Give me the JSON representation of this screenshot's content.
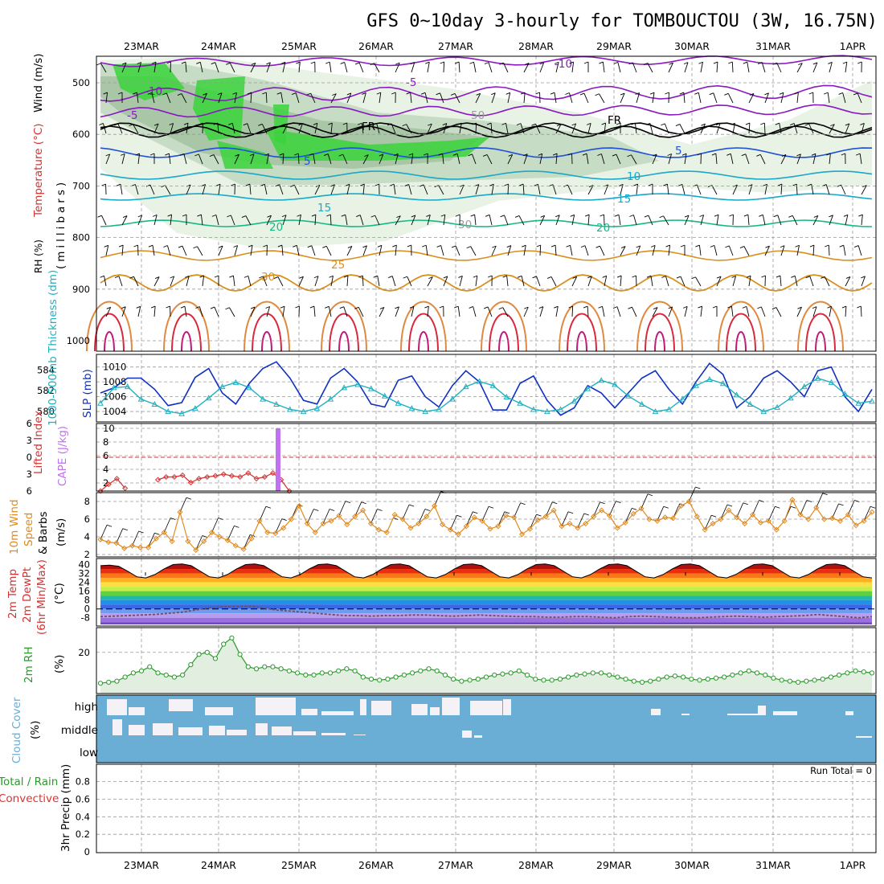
{
  "title": "GFS 0~10day 3-hourly for TOMBOUCTOU (3W, 16.75N)",
  "dates": [
    "23MAR",
    "24MAR",
    "25MAR",
    "26MAR",
    "27MAR",
    "28MAR",
    "29MAR",
    "30MAR",
    "31MAR",
    "1APR"
  ],
  "run_total": "Run Total = 0",
  "colors": {
    "rh_green": "#3ad43a",
    "temp_purple": "#8a1ac0",
    "temp_blue": "#1e50d8",
    "temp_cyan": "#18a8c8",
    "temp_green": "#18b888",
    "temp_orange": "#d8901e",
    "temp_red": "#d8283c",
    "slp": "#1030c0",
    "thickness": "#20b0c0",
    "lifted": "#d83030",
    "cape": "#c070f0",
    "wind10": "#e08a20",
    "rh2m": "#2a9a2a",
    "cloud": "#6aaed6",
    "precip_total": "#2a9a2a",
    "precip_conv": "#e03030"
  },
  "chart_data": [
    {
      "type": "heatmap",
      "panel": "upper_air",
      "ylabel": "(millibars)",
      "ylabel_parts": [
        "RH (%)",
        "Temperature (°C)",
        "Wind (m/s)"
      ],
      "yticks": [
        500,
        600,
        700,
        800,
        900,
        1000
      ],
      "ylim": [
        450,
        1000
      ],
      "contour_labels": [
        "-10",
        "-10",
        "-5",
        "-5",
        "FR",
        "FR",
        "5",
        "5",
        "10",
        "15",
        "15",
        "20",
        "20",
        "25",
        "30",
        "50",
        "30"
      ]
    },
    {
      "type": "line",
      "panel": "slp_thickness",
      "ylabel_left": "1000-500mb Thickness (dm)",
      "ylabel_right": "SLP (mb)",
      "yticks_left": [
        580,
        582,
        584
      ],
      "yticks_right": [
        1004,
        1006,
        1008,
        1010
      ],
      "ylim_left": [
        579,
        585.5
      ],
      "ylim_right": [
        1002.6,
        1011.7
      ],
      "series": [
        {
          "name": "SLP (mb)",
          "axis": "right",
          "values": [
            1006.5,
            1007.2,
            1008.5,
            1008.5,
            1007.0,
            1004.8,
            1005.2,
            1008.6,
            1009.8,
            1006.5,
            1005.0,
            1007.8,
            1009.8,
            1010.7,
            1008.5,
            1005.5,
            1005.0,
            1008.5,
            1009.8,
            1008.0,
            1005.0,
            1004.6,
            1008.2,
            1008.8,
            1006.0,
            1004.6,
            1007.5,
            1009.5,
            1008.0,
            1004.2,
            1004.2,
            1007.8,
            1008.8,
            1005.5,
            1003.5,
            1004.5,
            1007.5,
            1006.5,
            1004.5,
            1006.5,
            1008.5,
            1009.5,
            1007.0,
            1005.0,
            1008.0,
            1010.5,
            1009.0,
            1004.5,
            1006.0,
            1008.5,
            1009.5,
            1008.0,
            1006.0,
            1009.5,
            1010.0,
            1006.0,
            1004.0,
            1007.0
          ]
        },
        {
          "name": "1000-500mb Thickness (dm)",
          "axis": "left",
          "values": [
            580.8,
            582.3,
            582.4,
            581.2,
            580.7,
            580.0,
            579.8,
            580.3,
            581.3,
            582.4,
            582.8,
            582.3,
            581.2,
            580.7,
            580.2,
            580.0,
            580.3,
            581.2,
            582.3,
            582.6,
            582.2,
            581.5,
            580.8,
            580.3,
            580.0,
            580.2,
            581.2,
            582.4,
            582.9,
            582.5,
            581.4,
            580.8,
            580.2,
            580.0,
            580.2,
            581.0,
            582.2,
            583.0,
            582.6,
            581.5,
            580.7,
            580.0,
            580.2,
            581.2,
            582.5,
            583.1,
            582.7,
            581.6,
            580.7,
            580.0,
            580.4,
            581.3,
            582.4,
            583.2,
            582.8,
            581.7,
            580.8,
            581.0
          ]
        }
      ]
    },
    {
      "type": "line",
      "panel": "lifted_cape",
      "ylabel_left": "Lifted Index",
      "ylabel_right": "CAPE (J/kg)",
      "yticks_left": [
        -6,
        -3,
        0,
        3,
        6
      ],
      "yticks_right": [
        2,
        4,
        6,
        8,
        10
      ],
      "ylim_left": [
        6,
        -6
      ],
      "series": [
        {
          "name": "Lifted Index",
          "values": [
            6.0,
            4.8,
            3.8,
            5.5,
            null,
            null,
            null,
            4.0,
            3.5,
            3.5,
            3.2,
            4.5,
            3.8,
            3.5,
            3.3,
            3.0,
            3.3,
            3.5,
            2.8,
            3.8,
            3.5,
            2.8,
            4.0,
            6.0,
            null
          ]
        },
        {
          "name": "CAPE (J/kg)",
          "bars": [
            {
              "x": "24MAR 18",
              "value": 10.0
            }
          ]
        }
      ]
    },
    {
      "type": "line",
      "panel": "wind10m",
      "ylabel": "10m Wind Speed & Barbs (m/s)",
      "yticks": [
        2,
        4,
        6,
        8
      ],
      "ylim": [
        2,
        9
      ],
      "series": [
        {
          "name": "10m Wind Speed",
          "values": [
            3.7,
            3.4,
            3.3,
            2.7,
            3.0,
            2.8,
            2.8,
            3.8,
            4.5,
            3.5,
            6.8,
            3.5,
            2.5,
            3.5,
            4.5,
            4.0,
            3.6,
            3.0,
            2.6,
            3.8,
            5.8,
            4.5,
            4.4,
            5.0,
            6.0,
            7.5,
            5.5,
            4.5,
            5.5,
            5.8,
            6.4,
            5.4,
            6.3,
            7.0,
            5.5,
            4.8,
            4.5,
            6.5,
            6.0,
            5.0,
            5.5,
            6.3,
            7.5,
            5.4,
            4.8,
            4.3,
            5.2,
            6.2,
            5.8,
            4.9,
            5.2,
            6.4,
            6.2,
            4.3,
            4.9,
            5.9,
            6.3,
            7.0,
            5.2,
            5.5,
            5.0,
            5.5,
            6.3,
            7.0,
            6.4,
            5.0,
            5.6,
            6.6,
            7.2,
            6.0,
            5.8,
            6.2,
            6.1,
            7.5,
            8.0,
            6.3,
            4.8,
            5.5,
            6.0,
            7.0,
            6.2,
            5.5,
            6.5,
            5.6,
            5.8,
            4.8,
            5.8,
            8.2,
            6.5,
            6.0,
            7.3,
            6.0,
            6.1,
            5.8,
            6.5,
            5.3,
            5.8,
            6.8
          ]
        }
      ]
    },
    {
      "type": "area",
      "panel": "temp2m",
      "ylabel": "2m Temp 2m DewPt (6hr Min/Max) (°C)",
      "yticks": [
        -8,
        0,
        8,
        16,
        24,
        32,
        40
      ],
      "ylim": [
        -14,
        44
      ],
      "series": [
        {
          "name": "2m Temp",
          "values": [
            39,
            39.5,
            38.5,
            34,
            29,
            28,
            31,
            36,
            40,
            40.5,
            39,
            34,
            29,
            28,
            31,
            36,
            40,
            40.5,
            39,
            34,
            29,
            28,
            31,
            36,
            40,
            40.5,
            39,
            34,
            29,
            28,
            31,
            36,
            40,
            40.5,
            39,
            34,
            29,
            28,
            31,
            36,
            40,
            40.5,
            39,
            34,
            29,
            28,
            31,
            36,
            40,
            40.5,
            39,
            34,
            29,
            28,
            31,
            36,
            40,
            40.5,
            39,
            34,
            29,
            28,
            31,
            36,
            40,
            40.5,
            39,
            34,
            29,
            28,
            31,
            36,
            40,
            40.5,
            39,
            34,
            29,
            28,
            31,
            36,
            40,
            40.5,
            39,
            34,
            29,
            28
          ]
        },
        {
          "name": "2m DewPt",
          "values": [
            -7,
            -6.5,
            -6,
            -5.5,
            -5,
            -4,
            -3,
            -1,
            1,
            2,
            2,
            2.5,
            1,
            -1,
            -2,
            -3,
            -4,
            -5,
            -6,
            -6,
            -6.5,
            -6,
            -6,
            -5.5,
            -5.5,
            -6,
            -6.5,
            -6,
            -5.5,
            -6,
            -6.5,
            -7,
            -7,
            -7.5,
            -7.5,
            -7,
            -7,
            -7.5,
            -8,
            -7,
            -6.5,
            -7,
            -7.5,
            -8,
            -8,
            -7.5,
            -7,
            -6.5,
            -7,
            -7.5,
            -7,
            -6.5,
            -6,
            -5,
            -6,
            -7,
            -8,
            -7
          ]
        }
      ]
    },
    {
      "type": "line",
      "panel": "rh2m",
      "ylabel": "2m RH (%)",
      "yticks": [
        20
      ],
      "ylim": [
        0,
        32
      ],
      "series": [
        {
          "name": "2m RH",
          "values": [
            5,
            5.5,
            6,
            8,
            10,
            11,
            13,
            10,
            9,
            8,
            9,
            14,
            19,
            20,
            17,
            24,
            27,
            19,
            13,
            12,
            13,
            13,
            12,
            11,
            10,
            9,
            9,
            10,
            10,
            11,
            12,
            11,
            8,
            7,
            6.5,
            7,
            8,
            9,
            10,
            11,
            12,
            11,
            9,
            7,
            6,
            6.5,
            7,
            8,
            9,
            9.5,
            10,
            11,
            9,
            7,
            6.5,
            6.5,
            7,
            8,
            9,
            9.5,
            10,
            10,
            9,
            8,
            7,
            6,
            5.5,
            6,
            7,
            8,
            8.5,
            8,
            7,
            6.5,
            7,
            7.5,
            8,
            9,
            10,
            11,
            10,
            9,
            7.5,
            6.5,
            6,
            5.5,
            6,
            6.5,
            7,
            8,
            9,
            10,
            11,
            10.5,
            10
          ]
        }
      ]
    },
    {
      "type": "bar",
      "panel": "cloud_cover",
      "ylabel": "Cloud Cover (%)",
      "categories": [
        "high",
        "middle",
        "low"
      ]
    },
    {
      "type": "bar",
      "panel": "precip",
      "ylabel_parts": [
        "Total / Rain",
        "Convective",
        "3hr Precip (mm)"
      ],
      "yticks": [
        0,
        0.2,
        0.4,
        0.6,
        0.8
      ],
      "ylim": [
        0,
        0.98
      ],
      "values": []
    }
  ]
}
